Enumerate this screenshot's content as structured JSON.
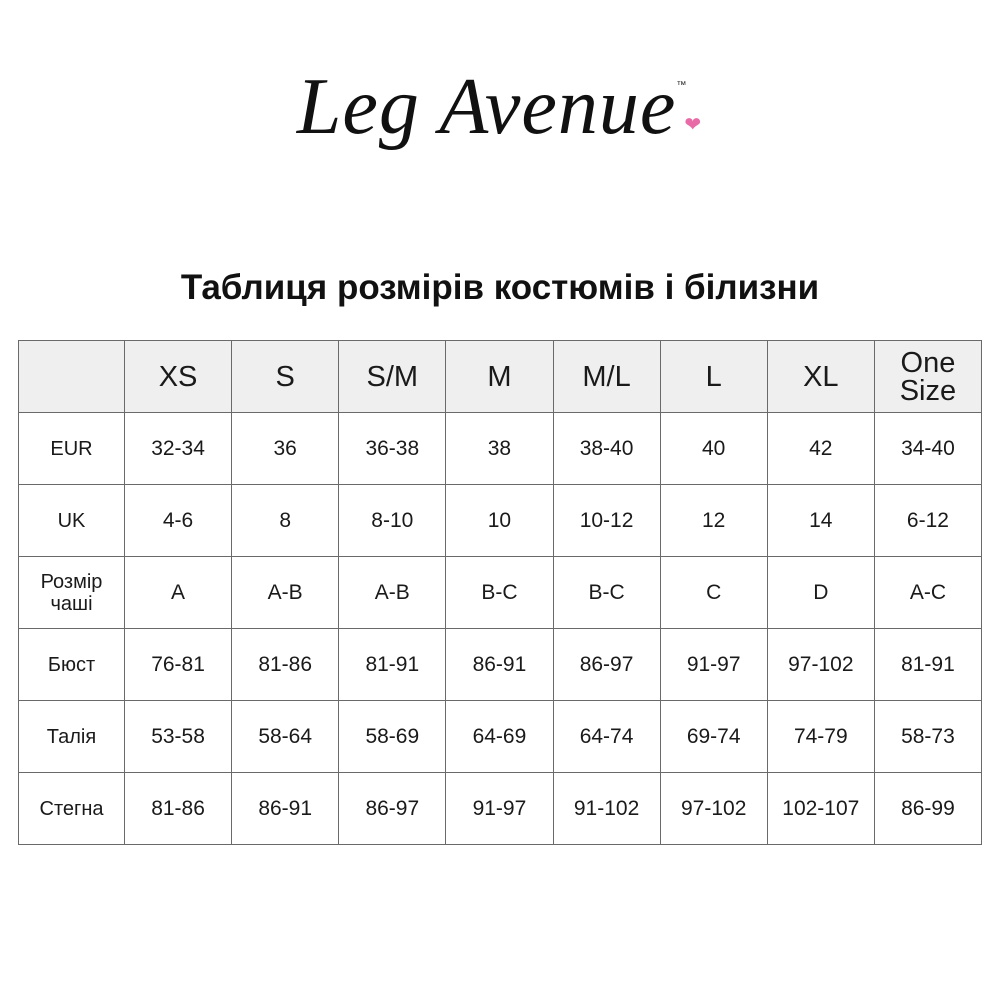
{
  "logo": {
    "text": "Leg Avenue",
    "tm": "™",
    "heart_color": "#e86aa6"
  },
  "title": "Таблиця розмірів костюмів і білизни",
  "table": {
    "headers": [
      "",
      "XS",
      "S",
      "S/M",
      "M",
      "M/L",
      "L",
      "XL",
      "One Size"
    ],
    "rows": [
      {
        "label": "EUR",
        "values": [
          "32-34",
          "36",
          "36-38",
          "38",
          "38-40",
          "40",
          "42",
          "34-40"
        ]
      },
      {
        "label": "UK",
        "values": [
          "4-6",
          "8",
          "8-10",
          "10",
          "10-12",
          "12",
          "14",
          "6-12"
        ]
      },
      {
        "label": "Розмір чаші",
        "values": [
          "A",
          "A-B",
          "A-B",
          "B-C",
          "B-C",
          "C",
          "D",
          "A-C"
        ]
      },
      {
        "label": "Бюст",
        "values": [
          "76-81",
          "81-86",
          "81-91",
          "86-91",
          "86-97",
          "91-97",
          "97-102",
          "81-91"
        ]
      },
      {
        "label": "Талія",
        "values": [
          "53-58",
          "58-64",
          "58-69",
          "64-69",
          "64-74",
          "69-74",
          "74-79",
          "58-73"
        ]
      },
      {
        "label": "Стегна",
        "values": [
          "81-86",
          "86-91",
          "86-97",
          "91-97",
          "91-102",
          "97-102",
          "102-107",
          "86-99"
        ]
      }
    ]
  }
}
